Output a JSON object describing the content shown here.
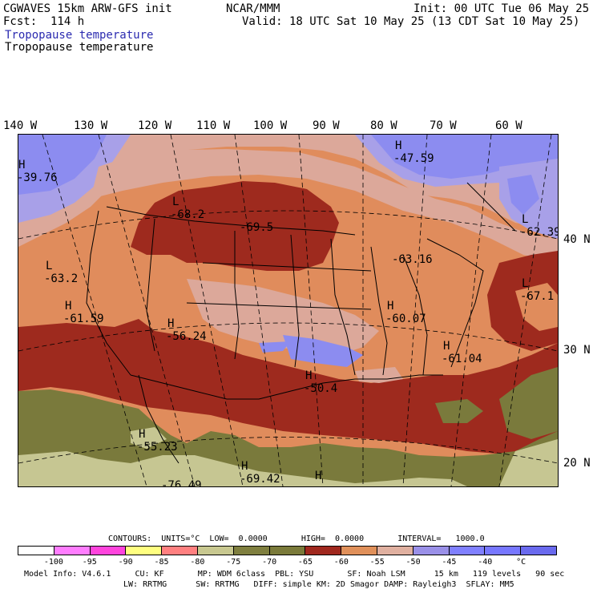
{
  "header": {
    "model": "CGWAVES 15km ARW-GFS init",
    "org": "NCAR/MMM",
    "init": "Init: 00 UTC Tue 06 May 25",
    "fcst": "Fcst:  114 h",
    "valid": "Valid: 18 UTC Sat 10 May 25 (13 CDT Sat 10 May 25)",
    "field_title_1": "Tropopause temperature",
    "field_title_2": "Tropopause temperature"
  },
  "axes": {
    "lon_labels": [
      "140 W",
      "130 W",
      "120 W",
      "110 W",
      "100 W",
      "90 W",
      "80 W",
      "70 W",
      "60 W"
    ],
    "lat_labels": [
      "40 N",
      "30 N",
      "20 N"
    ]
  },
  "extrema": [
    {
      "type": "H",
      "value": "-47.59"
    },
    {
      "type": "H",
      "value": "-39.76"
    },
    {
      "type": "L",
      "value": "-68.2"
    },
    {
      "type": "",
      "value": "-69.5"
    },
    {
      "type": "L",
      "value": "-62.39"
    },
    {
      "type": "",
      "value": "-63.16"
    },
    {
      "type": "L",
      "value": "-63.2"
    },
    {
      "type": "L",
      "value": "-67.1"
    },
    {
      "type": "H",
      "value": "-61.59"
    },
    {
      "type": "H",
      "value": "-60.07"
    },
    {
      "type": "H",
      "value": "-56.24"
    },
    {
      "type": "H",
      "value": "-61.04"
    },
    {
      "type": "H",
      "value": "-50.4"
    },
    {
      "type": "H",
      "value": "-55.23"
    },
    {
      "type": "H",
      "value": "-69.42"
    },
    {
      "type": "H",
      "value": ""
    },
    {
      "type": "",
      "value": "-76.49"
    }
  ],
  "contours": {
    "line": "CONTOURS:  UNITS=°C  LOW=  0.0000       HIGH=  0.0000       INTERVAL=   1000.0"
  },
  "colorbar": {
    "colors": [
      "#ffffff",
      "#ff7dff",
      "#ff44dd",
      "#ffff80",
      "#ff8080",
      "#c8c890",
      "#7f7f3f",
      "#7a7a3a",
      "#a0281e",
      "#e0905a",
      "#e0b0a0",
      "#9a90e8",
      "#8080ff",
      "#7777ff",
      "#6a6aee"
    ],
    "labels": [
      "-100",
      "-95",
      "-90",
      "-85",
      "-80",
      "-75",
      "-70",
      "-65",
      "-60",
      "-55",
      "-50",
      "-45",
      "-40",
      "°C"
    ]
  },
  "footer": {
    "line1": "Model Info: V4.6.1     CU: KF       MP: WDM 6class  PBL: YSU       SF: Noah LSM      15 km   119 levels   90 sec",
    "line2": "LW: RRTMG      SW: RRTMG   DIFF: simple KM: 2D Smagor DAMP: Rayleigh3  SFLAY: MM5"
  },
  "colors": {
    "purple": "#8c8cf0",
    "lavender": "#a8a0e8",
    "pink": "#dca89a",
    "salmon": "#e08c5c",
    "brick": "#9e2a1e",
    "olive": "#7a7a3c",
    "khaki": "#c6c692"
  }
}
